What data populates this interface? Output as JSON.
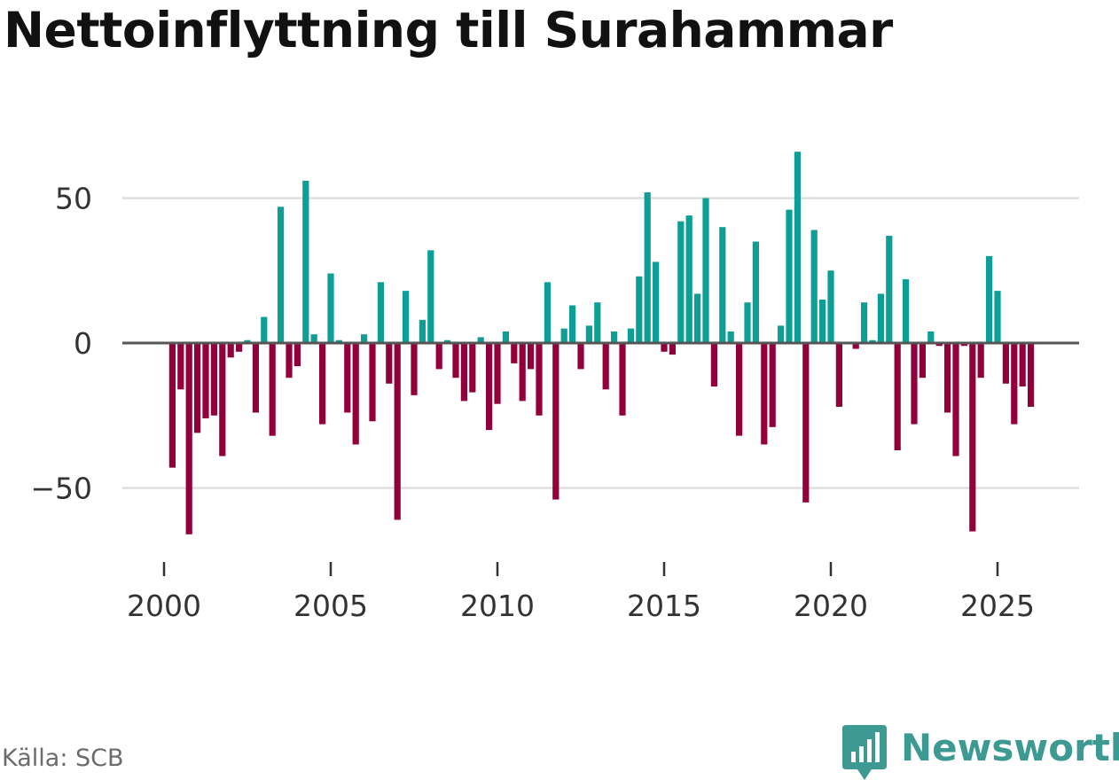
{
  "title": "Nettoinflyttning till Surahammar",
  "source": "Källa: SCB",
  "brand": {
    "name": "Newsworthy",
    "icon": "newsworthy-logo-icon"
  },
  "colors": {
    "positive": "#0d9e96",
    "negative": "#92003b",
    "zero_line": "#555555",
    "grid": "#dedede",
    "brand": "#3d9a92"
  },
  "chart_data": {
    "type": "bar",
    "title": "Nettoinflyttning till Surahammar",
    "xlabel": "",
    "ylabel": "",
    "frequency": "quarterly",
    "start": {
      "year": 2000,
      "quarter": 2
    },
    "xlim": [
      1999.5,
      2027.2
    ],
    "ylim": [
      -75,
      75
    ],
    "xticks": [
      {
        "value": 2000,
        "label": "2000"
      },
      {
        "value": 2005,
        "label": "2005"
      },
      {
        "value": 2010,
        "label": "2010"
      },
      {
        "value": 2015,
        "label": "2015"
      },
      {
        "value": 2020,
        "label": "2020"
      },
      {
        "value": 2025,
        "label": "2025"
      }
    ],
    "yticks": [
      {
        "value": 50,
        "label": "50"
      },
      {
        "value": 0,
        "label": "0"
      },
      {
        "value": -50,
        "label": "−50"
      }
    ],
    "grid": true,
    "values": [
      -43,
      -16,
      -66,
      -31,
      -26,
      -25,
      -39,
      -5,
      -3,
      1,
      -24,
      9,
      -32,
      47,
      -12,
      -8,
      56,
      3,
      -28,
      24,
      1,
      -24,
      -35,
      3,
      -27,
      21,
      -14,
      -61,
      18,
      -18,
      8,
      32,
      -9,
      1,
      -12,
      -20,
      -17,
      2,
      -30,
      -21,
      4,
      -7,
      -20,
      -9,
      -25,
      21,
      -54,
      5,
      13,
      -9,
      6,
      14,
      -16,
      4,
      -25,
      5,
      23,
      52,
      28,
      -3,
      -4,
      42,
      44,
      17,
      50,
      -15,
      40,
      4,
      -32,
      14,
      35,
      -35,
      -29,
      6,
      46,
      66,
      -55,
      39,
      15,
      25,
      -22,
      0,
      -2,
      14,
      1,
      17,
      37,
      -37,
      22,
      -28,
      -12,
      4,
      -1,
      -24,
      -39,
      -1,
      -65,
      -12,
      30,
      18,
      -14,
      -28,
      -15,
      -22
    ]
  }
}
